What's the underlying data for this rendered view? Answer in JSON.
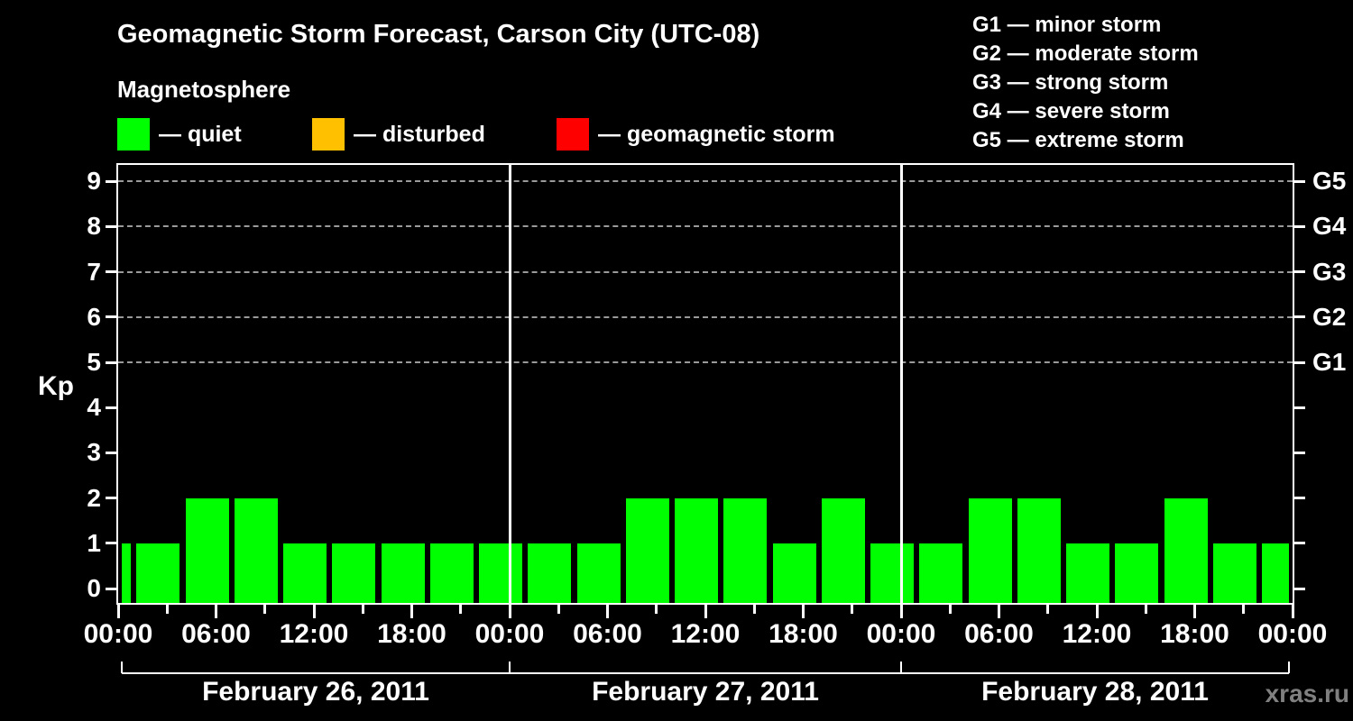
{
  "header": {
    "title": "Geomagnetic Storm Forecast, Carson City (UTC-08)",
    "subtitle": "Magnetosphere"
  },
  "legend": {
    "items": [
      {
        "name": "quiet",
        "label": "— quiet",
        "color": "#00ff00"
      },
      {
        "name": "disturbed",
        "label": "— disturbed",
        "color": "#ffc000"
      },
      {
        "name": "geomagnetic-storm",
        "label": "— geomagnetic storm",
        "color": "#ff0000"
      }
    ]
  },
  "g_scale_legend": {
    "items": [
      {
        "label": "G1 — minor storm"
      },
      {
        "label": "G2 — moderate storm"
      },
      {
        "label": "G3 — strong storm"
      },
      {
        "label": "G4 — severe storm"
      },
      {
        "label": "G5 — extreme storm"
      }
    ]
  },
  "chart_data": {
    "type": "bar",
    "title": "Geomagnetic Storm Forecast, Carson City (UTC-08)",
    "ylabel": "Kp",
    "ylim": [
      0,
      9
    ],
    "y_ticks": [
      0,
      1,
      2,
      3,
      4,
      5,
      6,
      7,
      8,
      9
    ],
    "gridlines_at_kp": [
      5,
      6,
      7,
      8,
      9
    ],
    "grid_style": "dashed",
    "right_axis": [
      {
        "kp": 9,
        "label": "G5"
      },
      {
        "kp": 8,
        "label": "G4"
      },
      {
        "kp": 7,
        "label": "G3"
      },
      {
        "kp": 6,
        "label": "G2"
      },
      {
        "kp": 5,
        "label": "G1"
      }
    ],
    "bar_color": "#00ff00",
    "interval_hours": 3,
    "x_tick_labels": [
      "00:00",
      "06:00",
      "12:00",
      "18:00",
      "00:00",
      "06:00",
      "12:00",
      "18:00",
      "00:00",
      "06:00",
      "12:00",
      "18:00",
      "00:00"
    ],
    "days": [
      {
        "label": "February 26, 2011",
        "values_3h": [
          1,
          1,
          2,
          2,
          1,
          1,
          1,
          1
        ]
      },
      {
        "label": "February 27, 2011",
        "values_3h": [
          1,
          1,
          1,
          2,
          2,
          2,
          1,
          2
        ]
      },
      {
        "label": "February 28, 2011",
        "values_3h": [
          1,
          1,
          2,
          2,
          1,
          1,
          2,
          1
        ]
      }
    ],
    "closing_bar_value": 1
  },
  "watermark": "xras.ru"
}
